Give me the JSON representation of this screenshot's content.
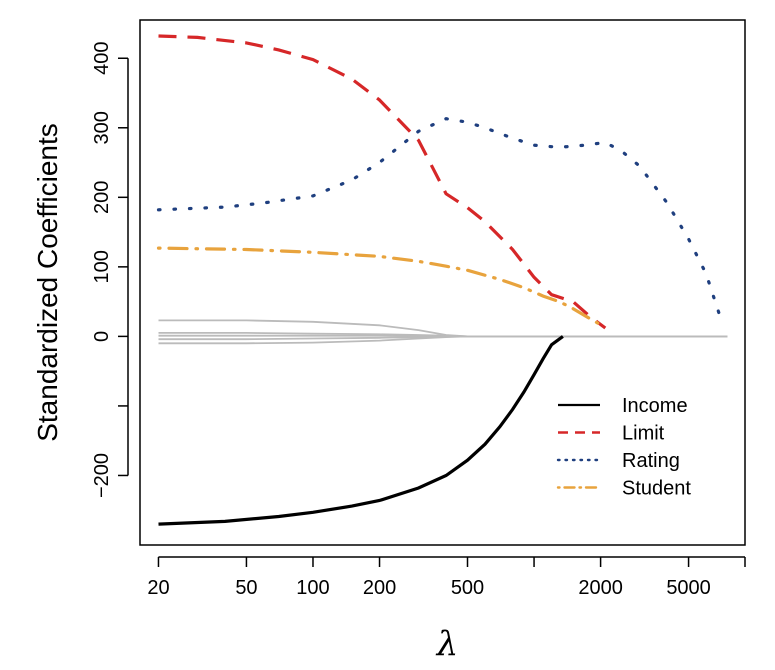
{
  "chart_data": {
    "type": "line",
    "xlabel": "λ",
    "ylabel": "Standardized Coefficients",
    "x_scale": "log",
    "xlim": [
      16.5,
      9000
    ],
    "ylim": [
      -300,
      455
    ],
    "x_ticks": [
      20,
      50,
      100,
      200,
      500,
      2000,
      5000
    ],
    "x_tick_labels": [
      "20",
      "50",
      "100",
      "200",
      "500",
      "2000",
      "5000"
    ],
    "x_minor_ticks": [
      1000,
      9000
    ],
    "y_ticks": [
      400,
      300,
      200,
      100,
      0,
      -100,
      -200
    ],
    "y_tick_labels": [
      "400",
      "300",
      "200",
      "100",
      "0",
      "",
      "−200"
    ],
    "grid": false,
    "legend_position": "bottom-right",
    "series": [
      {
        "name": "Income",
        "color": "#000000",
        "style": "solid",
        "x": [
          20,
          40,
          70,
          100,
          150,
          200,
          300,
          400,
          500,
          600,
          700,
          800,
          900,
          1000,
          1100,
          1200,
          1350
        ],
        "y": [
          -270,
          -266,
          -259,
          -253,
          -244,
          -236,
          -218,
          -200,
          -178,
          -155,
          -130,
          -105,
          -80,
          -55,
          -32,
          -12,
          0
        ]
      },
      {
        "name": "Limit",
        "color": "#d62728",
        "style": "dashed",
        "x": [
          20,
          30,
          50,
          70,
          100,
          150,
          200,
          300,
          400,
          500,
          600,
          800,
          1000,
          1200,
          1500,
          1800,
          2100
        ],
        "y": [
          432,
          430,
          422,
          412,
          398,
          370,
          340,
          282,
          205,
          185,
          165,
          125,
          85,
          60,
          50,
          28,
          12
        ]
      },
      {
        "name": "Rating",
        "color": "#1f3f7f",
        "style": "dotted",
        "x": [
          20,
          40,
          60,
          100,
          150,
          200,
          300,
          400,
          500,
          600,
          800,
          1000,
          1300,
          1700,
          2100,
          2500,
          3000,
          4000,
          5000,
          6000,
          7000
        ],
        "y": [
          182,
          186,
          192,
          202,
          225,
          250,
          295,
          313,
          308,
          300,
          285,
          275,
          272,
          275,
          279,
          266,
          245,
          192,
          140,
          90,
          25
        ]
      },
      {
        "name": "Student",
        "color": "#e8a33d",
        "style": "dashdot",
        "x": [
          20,
          50,
          100,
          200,
          300,
          400,
          500,
          700,
          900,
          1100,
          1300,
          1500,
          1800,
          2100
        ],
        "y": [
          127,
          125,
          121,
          115,
          108,
          101,
          95,
          82,
          70,
          58,
          50,
          40,
          25,
          13
        ]
      }
    ],
    "unlabeled_series": [
      {
        "color": "#bbbbbb",
        "x": [
          20,
          50,
          100,
          200,
          300,
          400,
          500,
          1000,
          7500
        ],
        "y": [
          23,
          23,
          21,
          16,
          9,
          2,
          0,
          0,
          0
        ]
      },
      {
        "color": "#bbbbbb",
        "x": [
          20,
          50,
          100,
          200,
          300,
          400,
          500,
          1000,
          7500
        ],
        "y": [
          5,
          5,
          4,
          3,
          2,
          1,
          0,
          0,
          0
        ]
      },
      {
        "color": "#bbbbbb",
        "x": [
          20,
          50,
          100,
          200,
          300,
          400,
          500,
          1000,
          7500
        ],
        "y": [
          1,
          1,
          1,
          1,
          0,
          0,
          0,
          0,
          0
        ]
      },
      {
        "color": "#bbbbbb",
        "x": [
          20,
          50,
          100,
          200,
          300,
          400,
          500,
          1000,
          7500
        ],
        "y": [
          -4,
          -4,
          -3,
          -2,
          -1,
          0,
          0,
          0,
          0
        ]
      },
      {
        "color": "#bbbbbb",
        "x": [
          20,
          50,
          100,
          200,
          300,
          400,
          500,
          1000,
          7500
        ],
        "y": [
          -10,
          -10,
          -9,
          -6,
          -3,
          -1,
          0,
          0,
          0
        ]
      }
    ]
  }
}
